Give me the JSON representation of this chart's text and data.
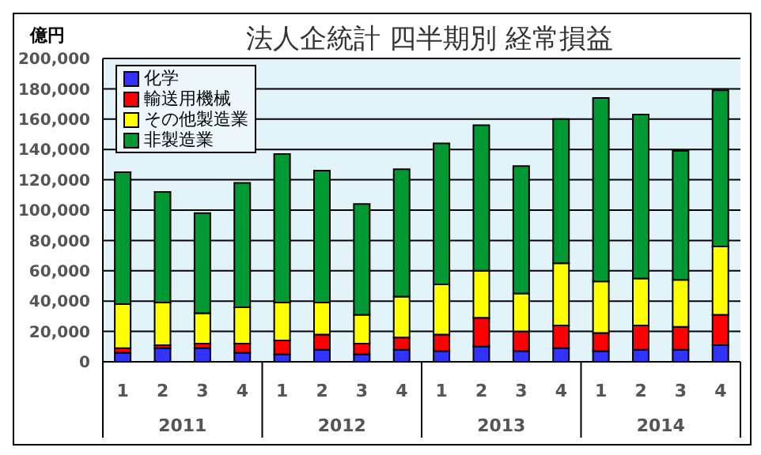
{
  "chart_data": {
    "type": "bar",
    "title": "法人企統計 四半期別 経常損益",
    "ylabel": "億円",
    "stacked": true,
    "categories": [
      "1",
      "2",
      "3",
      "4",
      "1",
      "2",
      "3",
      "4",
      "1",
      "2",
      "3",
      "4",
      "1",
      "2",
      "3",
      "4"
    ],
    "annotations": [
      "2011",
      "2012",
      "2013",
      "2014"
    ],
    "series": [
      {
        "name": "化学",
        "color": "#3333ff",
        "values": [
          6000,
          9000,
          9000,
          6000,
          5000,
          8000,
          5000,
          8000,
          7000,
          10000,
          7000,
          9000,
          7000,
          8000,
          8000,
          11000
        ]
      },
      {
        "name": "輸送用機械",
        "color": "#ff0000",
        "values": [
          3000,
          2000,
          3000,
          6000,
          9000,
          10000,
          7000,
          8000,
          11000,
          19000,
          13000,
          15000,
          12000,
          16000,
          15000,
          20000
        ]
      },
      {
        "name": "その他製造業",
        "color": "#ffff00",
        "values": [
          29000,
          28000,
          20000,
          24000,
          25000,
          21000,
          19000,
          27000,
          33000,
          31000,
          25000,
          41000,
          34000,
          31000,
          31000,
          45000
        ]
      },
      {
        "name": "非製造業",
        "color": "#009933",
        "values": [
          87000,
          73000,
          66000,
          82000,
          98000,
          87000,
          73000,
          84000,
          93000,
          96000,
          84000,
          95000,
          121000,
          108000,
          85000,
          103000
        ]
      }
    ],
    "ylim": [
      0,
      200000
    ],
    "yticks": [
      {
        "value": 0,
        "label": "0"
      },
      {
        "value": 20000,
        "label": "20,000"
      },
      {
        "value": 40000,
        "label": "40,000"
      },
      {
        "value": 60000,
        "label": "60,000"
      },
      {
        "value": 80000,
        "label": "80,000"
      },
      {
        "value": 100000,
        "label": "100,000"
      },
      {
        "value": 120000,
        "label": "120,000"
      },
      {
        "value": 140000,
        "label": "140,000"
      },
      {
        "value": 160000,
        "label": "160,000"
      },
      {
        "value": 180000,
        "label": "180,000"
      },
      {
        "value": 200000,
        "label": "200,000"
      }
    ],
    "grid": "y",
    "legend": "top left"
  }
}
